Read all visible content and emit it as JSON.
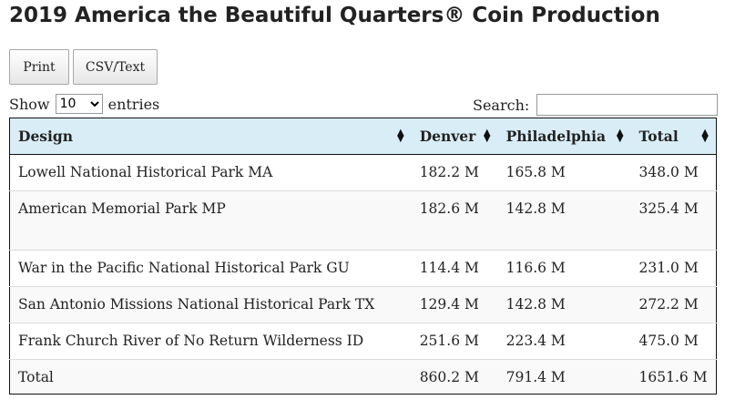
{
  "page": {
    "title": "2019 America the Beautiful Quarters® Coin Production"
  },
  "buttons": {
    "print": "Print",
    "csv": "CSV/Text"
  },
  "length": {
    "show_label": "Show",
    "selected": "10",
    "entries_label": "entries"
  },
  "search": {
    "label": "Search:",
    "value": ""
  },
  "table": {
    "headers": [
      "Design",
      "Denver",
      "Philadelphia",
      "Total"
    ],
    "rows": [
      [
        "Lowell National Historical Park MA",
        "182.2 M",
        "165.8 M",
        "348.0 M"
      ],
      [
        "American Memorial Park MP",
        "182.6 M",
        "142.8 M",
        "325.4 M"
      ],
      [
        "War in the Pacific National Historical Park GU",
        "114.4 M",
        "116.6 M",
        "231.0 M"
      ],
      [
        "San Antonio Missions National Historical Park TX",
        "129.4 M",
        "142.8 M",
        "272.2 M"
      ],
      [
        "Frank Church River of No Return Wilderness ID",
        "251.6 M",
        "223.4 M",
        "475.0 M"
      ],
      [
        "Total",
        "860.2 M",
        "791.4 M",
        "1651.6 M"
      ]
    ]
  },
  "colors": {
    "header_bg": "#d9edf7",
    "stripe_bg": "#f9f9f9"
  }
}
